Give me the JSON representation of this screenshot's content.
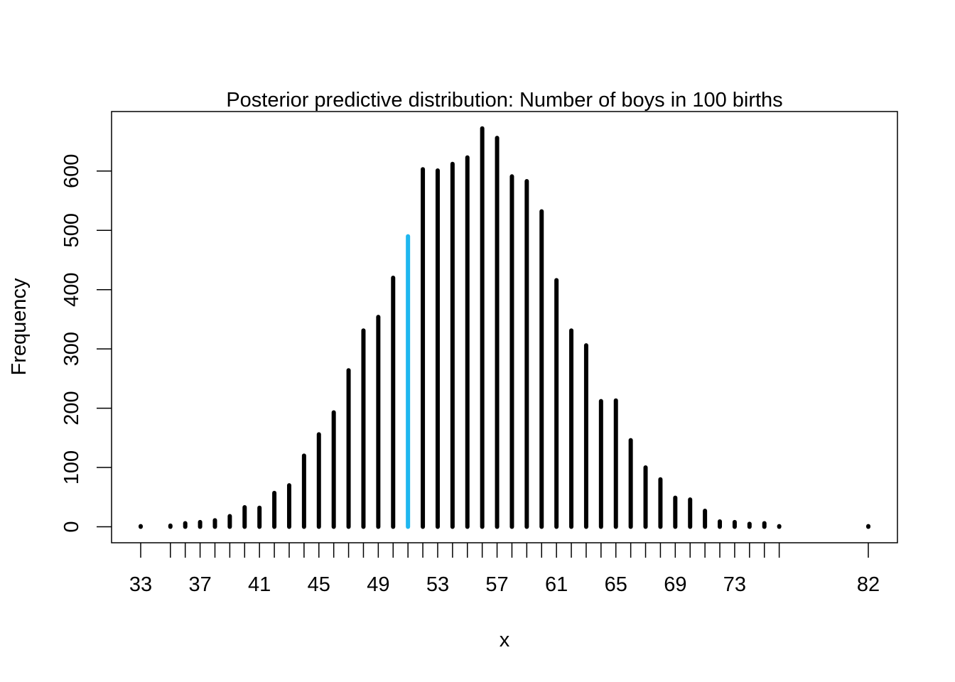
{
  "chart_data": {
    "type": "bar",
    "title": "Posterior predictive distribution: Number of boys in 100 births",
    "xlabel": "x",
    "ylabel": "Frequency",
    "x": [
      33,
      35,
      36,
      37,
      38,
      39,
      40,
      41,
      42,
      43,
      44,
      45,
      46,
      47,
      48,
      49,
      50,
      51,
      52,
      53,
      54,
      55,
      56,
      57,
      58,
      59,
      60,
      61,
      62,
      63,
      64,
      65,
      66,
      67,
      68,
      69,
      70,
      71,
      72,
      73,
      74,
      75,
      76,
      82
    ],
    "values": [
      1,
      2,
      6,
      8,
      11,
      18,
      33,
      32,
      57,
      70,
      120,
      156,
      193,
      264,
      331,
      354,
      420,
      490,
      603,
      601,
      612,
      623,
      672,
      656,
      591,
      583,
      532,
      416,
      331,
      306,
      212,
      213,
      146,
      100,
      80,
      49,
      46,
      27,
      9,
      8,
      5,
      6,
      1,
      1
    ],
    "highlight_x": 51,
    "highlight_color": "#1fb7ef",
    "bar_color": "#000000",
    "xlim": [
      33,
      82
    ],
    "ylim": [
      0,
      700
    ],
    "x_tick_labels": [
      "33",
      "37",
      "41",
      "45",
      "49",
      "53",
      "57",
      "61",
      "65",
      "69",
      "73",
      "82"
    ],
    "y_ticks": [
      0,
      100,
      200,
      300,
      400,
      500,
      600
    ],
    "y_tick_labels": [
      "0",
      "100",
      "200",
      "300",
      "400",
      "500",
      "600"
    ],
    "grid": false,
    "legend": "none"
  }
}
